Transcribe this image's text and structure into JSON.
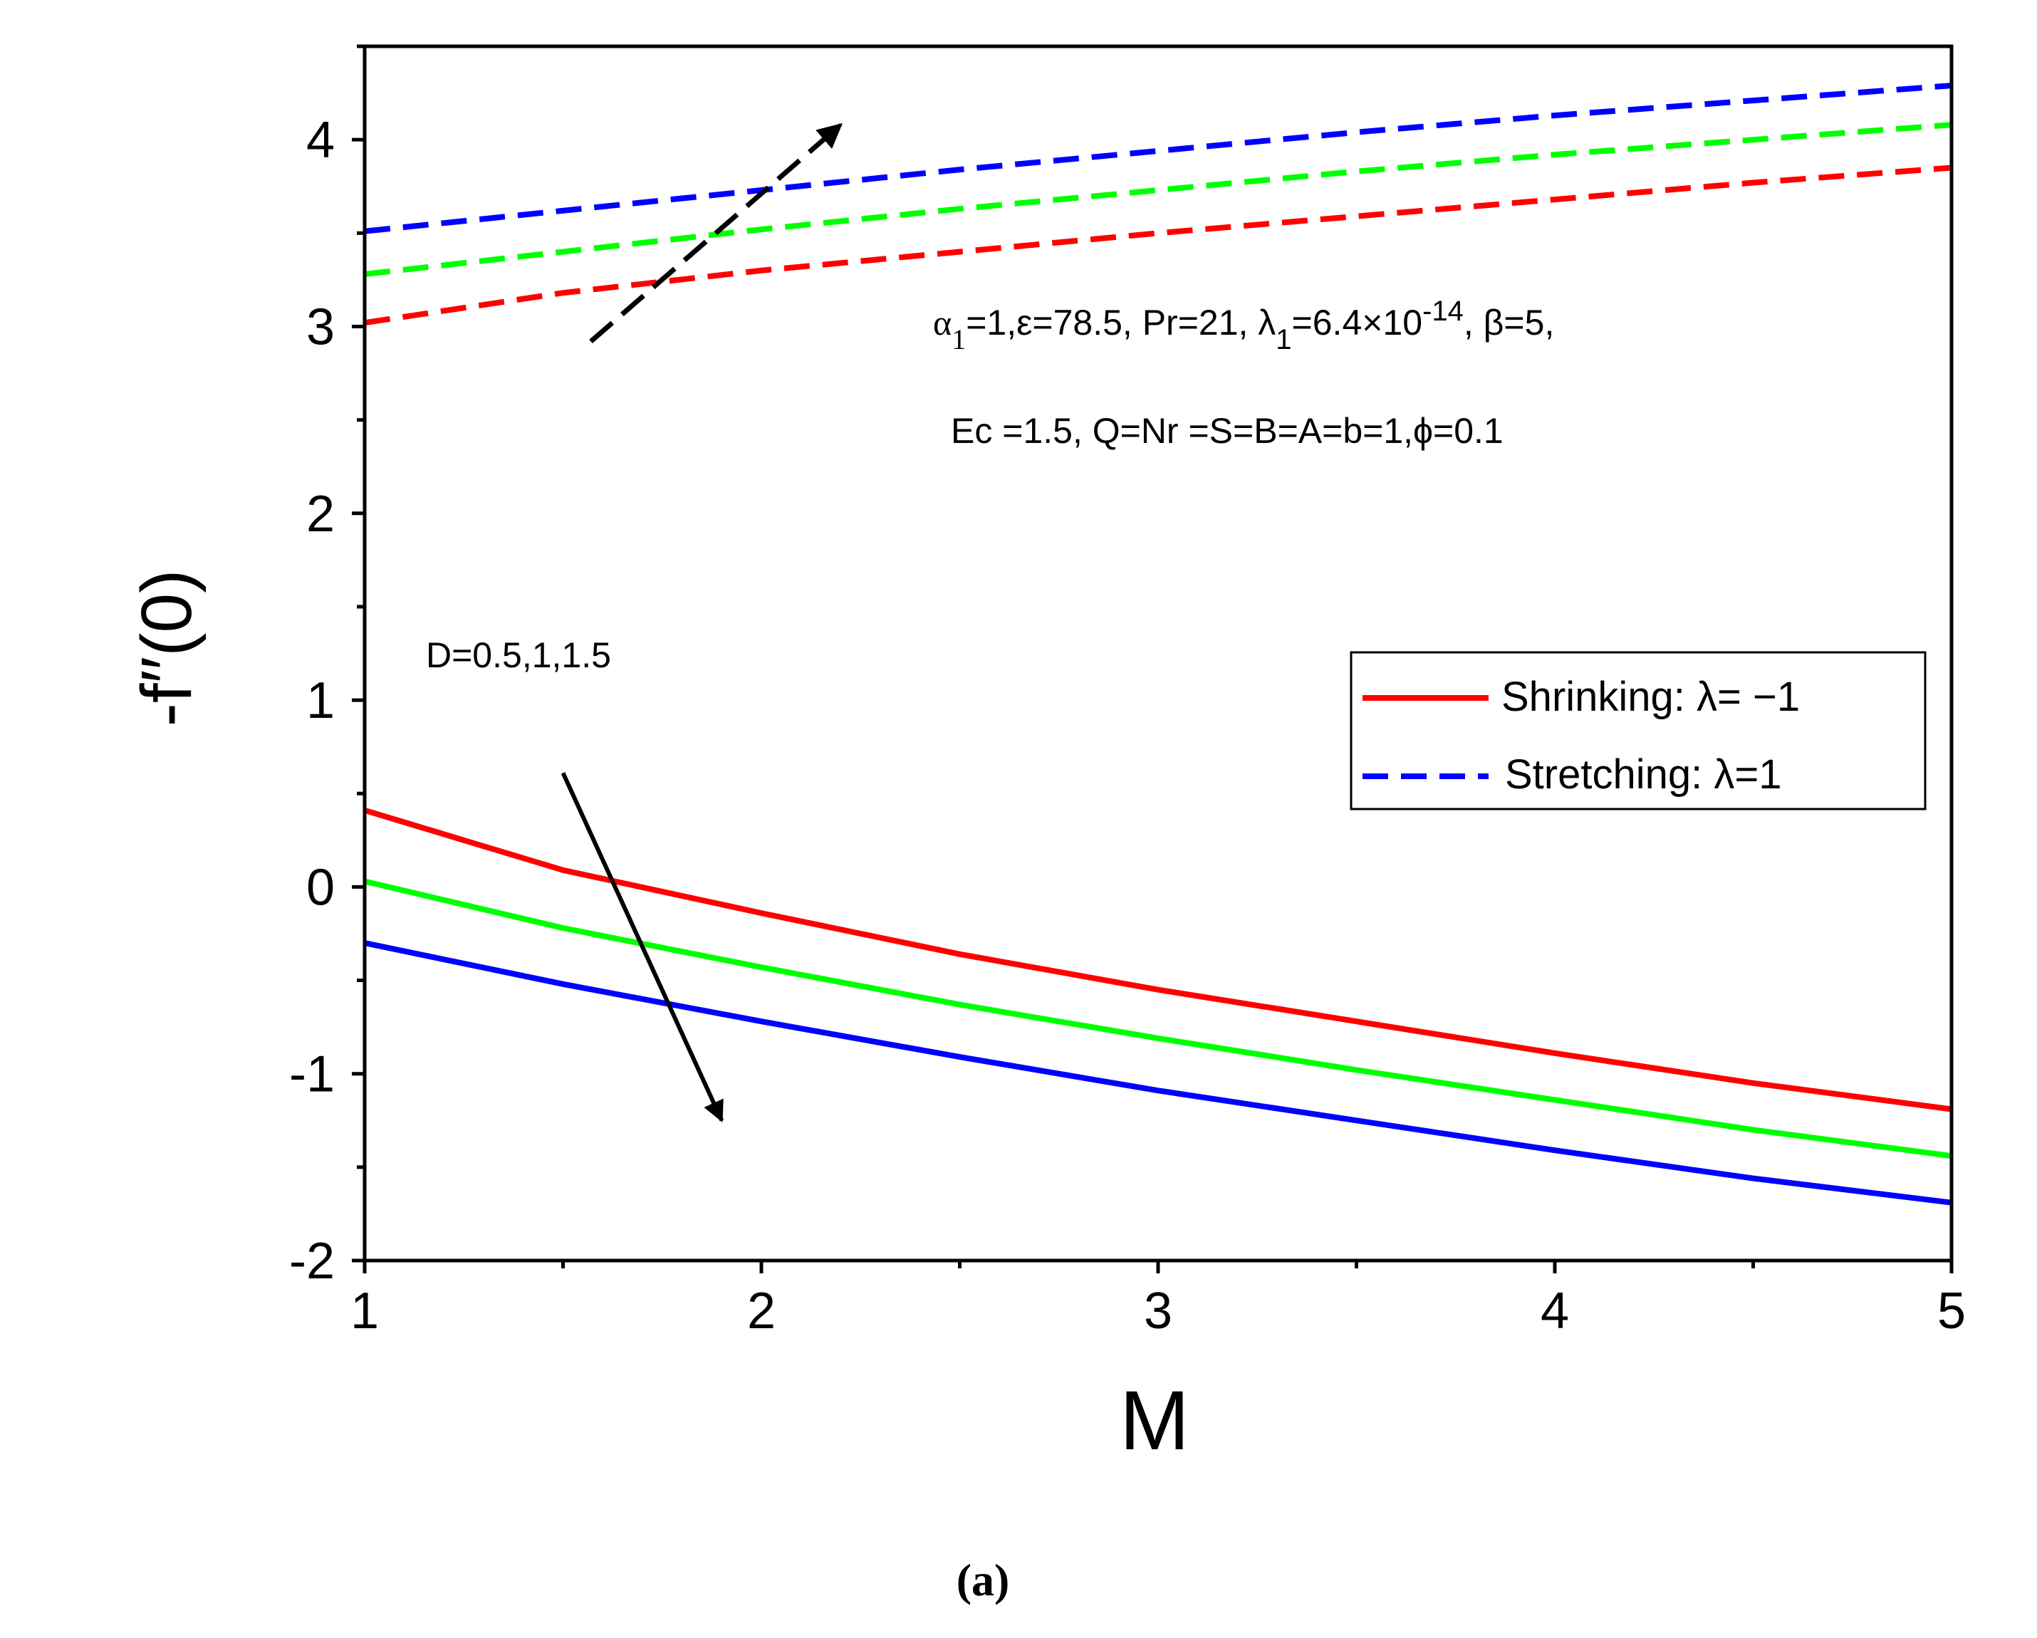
{
  "chart_data": {
    "type": "line",
    "title": "",
    "xlabel": "M",
    "ylabel": "-f′′(0)",
    "xlim": [
      1,
      5
    ],
    "ylim": [
      -2,
      4.5
    ],
    "x_ticks": [
      "1",
      "2",
      "3",
      "4",
      "5"
    ],
    "y_ticks": [
      "-2",
      "-1",
      "0",
      "1",
      "2",
      "3",
      "4"
    ],
    "x_tick_values": [
      1,
      2,
      3,
      4,
      5
    ],
    "y_tick_values": [
      -2,
      -1,
      0,
      1,
      2,
      3,
      4
    ],
    "x": [
      1,
      1.5,
      2,
      2.5,
      3,
      3.5,
      4,
      4.5,
      5
    ],
    "series": [
      {
        "name": "Shrinking D=0.5",
        "style": "solid",
        "color": "#ff0000",
        "values": [
          0.41,
          0.09,
          -0.14,
          -0.36,
          -0.55,
          -0.72,
          -0.89,
          -1.05,
          -1.19
        ]
      },
      {
        "name": "Shrinking D=1",
        "style": "solid",
        "color": "#00ff00",
        "values": [
          0.03,
          -0.22,
          -0.43,
          -0.63,
          -0.81,
          -0.98,
          -1.14,
          -1.3,
          -1.44
        ]
      },
      {
        "name": "Shrinking D=1.5",
        "style": "solid",
        "color": "#0000ff",
        "values": [
          -0.3,
          -0.52,
          -0.72,
          -0.91,
          -1.09,
          -1.25,
          -1.41,
          -1.56,
          -1.69
        ]
      },
      {
        "name": "Stretching D=0.5",
        "style": "dashed",
        "color": "#ff0000",
        "values": [
          3.02,
          3.18,
          3.3,
          3.4,
          3.5,
          3.59,
          3.68,
          3.77,
          3.85
        ]
      },
      {
        "name": "Stretching D=1",
        "style": "dashed",
        "color": "#00ff00",
        "values": [
          3.28,
          3.4,
          3.52,
          3.63,
          3.73,
          3.83,
          3.92,
          4.0,
          4.08
        ]
      },
      {
        "name": "Stretching D=1.5",
        "style": "dashed",
        "color": "#0000ff",
        "values": [
          3.51,
          3.62,
          3.73,
          3.84,
          3.94,
          4.04,
          4.13,
          4.21,
          4.29
        ]
      }
    ],
    "legend": {
      "position": "right",
      "entries": [
        {
          "label": "Shrinking: λ= −1",
          "style": "solid",
          "color": "#ff0000"
        },
        {
          "label": "Stretching: λ=1",
          "style": "dashed",
          "color": "#0000ff"
        }
      ]
    },
    "annotations": {
      "params_line1_parts": [
        "α",
        "1",
        "=1,ε=78.5, Pr=21, λ",
        "1",
        "=6.4×10",
        "-14",
        ", β=5,"
      ],
      "params_line2": "Ec =1.5, Q=Nr =S=B=A=b=1,ϕ=0.1",
      "d_label": "D=0.5,1,1.5",
      "stretching_arrow": {
        "from": [
          1.57,
          2.92
        ],
        "to": [
          2.2,
          4.08
        ]
      },
      "shrinking_arrow": {
        "from": [
          1.5,
          0.61
        ],
        "to": [
          1.9,
          -1.25
        ]
      }
    },
    "caption": "(a)",
    "colors": {
      "axis": "#000000",
      "background": "#ffffff"
    }
  }
}
